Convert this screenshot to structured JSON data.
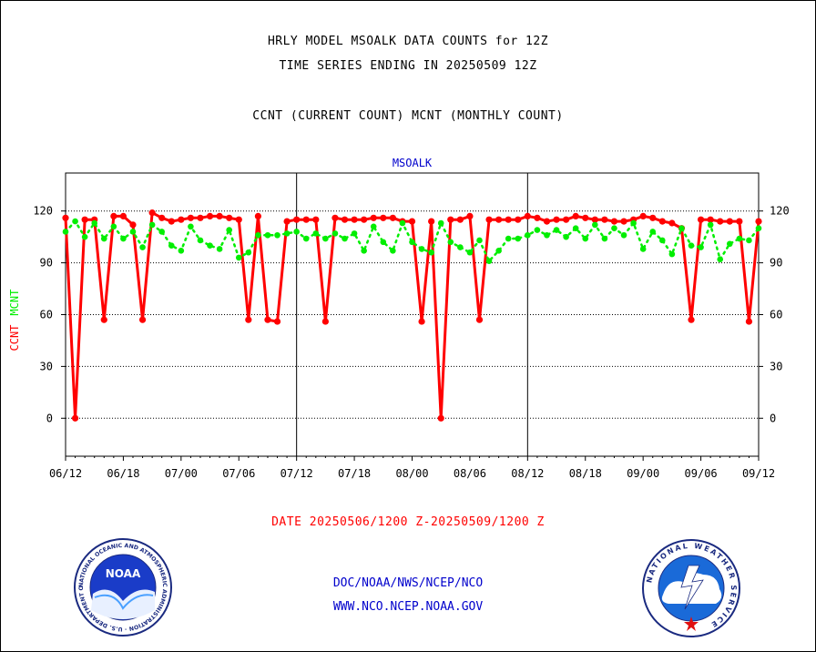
{
  "header": {
    "title_line1": "HRLY MODEL MSOALK DATA COUNTS for 12Z",
    "title_line2": "TIME SERIES ENDING IN 20250509 12Z",
    "subtitle": "CCNT (CURRENT COUNT) MCNT (MONTHLY COUNT)"
  },
  "footer": {
    "date_range": "DATE 20250506/1200 Z-20250509/1200 Z",
    "org": "DOC/NOAA/NWS/NCEP/NCO",
    "url": "WWW.NCO.NCEP.NOAA.GOV"
  },
  "logos": {
    "left": {
      "center_text": "NOAA",
      "ring_text": "NATIONAL OCEANIC AND ATMOSPHERIC ADMINISTRATION · U.S. DEPARTMENT OF COMMERCE ·"
    },
    "right": {
      "ring_text": "NATIONAL WEATHER SERVICE"
    }
  },
  "colors": {
    "ccnt": "#ff0000",
    "mcnt": "#00ee00",
    "axis": "#000000",
    "footer_blue": "#0000cc"
  },
  "chart_data": {
    "type": "line",
    "title": "MSOALK",
    "ylabel_parts": [
      {
        "text": "CCNT",
        "color": "#ff0000"
      },
      {
        "text": "MCNT",
        "color": "#00ee00"
      }
    ],
    "ylim": [
      -22,
      142
    ],
    "yticks": [
      0,
      30,
      60,
      90,
      120
    ],
    "grid": true,
    "x_tick_labels": [
      "06/12",
      "06/18",
      "07/00",
      "07/06",
      "07/12",
      "07/18",
      "08/00",
      "08/06",
      "08/12",
      "08/18",
      "09/00",
      "09/06",
      "09/12"
    ],
    "day_dividers": [
      24,
      48
    ],
    "x_range": [
      0,
      72
    ],
    "series": [
      {
        "name": "CCNT",
        "color": "#ff0000",
        "x": [
          0,
          1,
          2,
          3,
          4,
          5,
          6,
          7,
          8,
          9,
          10,
          11,
          12,
          13,
          14,
          15,
          16,
          17,
          18,
          19,
          20,
          21,
          22,
          23,
          24,
          25,
          26,
          27,
          28,
          29,
          30,
          31,
          32,
          33,
          34,
          35,
          36,
          37,
          38,
          39,
          40,
          41,
          42,
          43,
          44,
          45,
          46,
          47,
          48,
          49,
          50,
          51,
          52,
          53,
          54,
          55,
          56,
          57,
          58,
          59,
          60,
          61,
          62,
          63,
          64,
          65,
          66,
          67,
          68,
          69,
          70,
          71,
          72
        ],
        "values": [
          116,
          0,
          115,
          115,
          57,
          117,
          117,
          112,
          57,
          119,
          116,
          114,
          115,
          116,
          116,
          117,
          117,
          116,
          115,
          57,
          117,
          57,
          56,
          114,
          115,
          115,
          115,
          56,
          116,
          115,
          115,
          115,
          116,
          116,
          116,
          114,
          114,
          56,
          114,
          0,
          115,
          115,
          117,
          57,
          115,
          115,
          115,
          115,
          117,
          116,
          114,
          115,
          115,
          117,
          116,
          115,
          115,
          114,
          114,
          115,
          117,
          116,
          114,
          113,
          110,
          57,
          115,
          115,
          114,
          114,
          114,
          56,
          114
        ]
      },
      {
        "name": "MCNT",
        "color": "#00ee00",
        "x": [
          0,
          1,
          2,
          3,
          4,
          5,
          6,
          7,
          8,
          9,
          10,
          11,
          12,
          13,
          14,
          15,
          16,
          17,
          18,
          19,
          20,
          21,
          22,
          23,
          24,
          25,
          26,
          27,
          28,
          29,
          30,
          31,
          32,
          33,
          34,
          35,
          36,
          37,
          38,
          39,
          40,
          41,
          42,
          43,
          44,
          45,
          46,
          47,
          48,
          49,
          50,
          51,
          52,
          53,
          54,
          55,
          56,
          57,
          58,
          59,
          60,
          61,
          62,
          63,
          64,
          65,
          66,
          67,
          68,
          69,
          70,
          71,
          72
        ],
        "values": [
          108,
          114,
          105,
          113,
          104,
          111,
          104,
          108,
          99,
          112,
          108,
          100,
          97,
          111,
          103,
          100,
          98,
          109,
          93,
          96,
          106,
          106,
          106,
          107,
          108,
          104,
          107,
          104,
          107,
          104,
          107,
          97,
          111,
          102,
          97,
          113,
          102,
          98,
          96,
          113,
          102,
          99,
          96,
          103,
          91,
          97,
          104,
          104,
          106,
          109,
          106,
          109,
          105,
          110,
          104,
          112,
          104,
          110,
          106,
          113,
          98,
          108,
          103,
          95,
          110,
          100,
          99,
          112,
          92,
          101,
          104,
          103,
          110
        ]
      }
    ]
  }
}
